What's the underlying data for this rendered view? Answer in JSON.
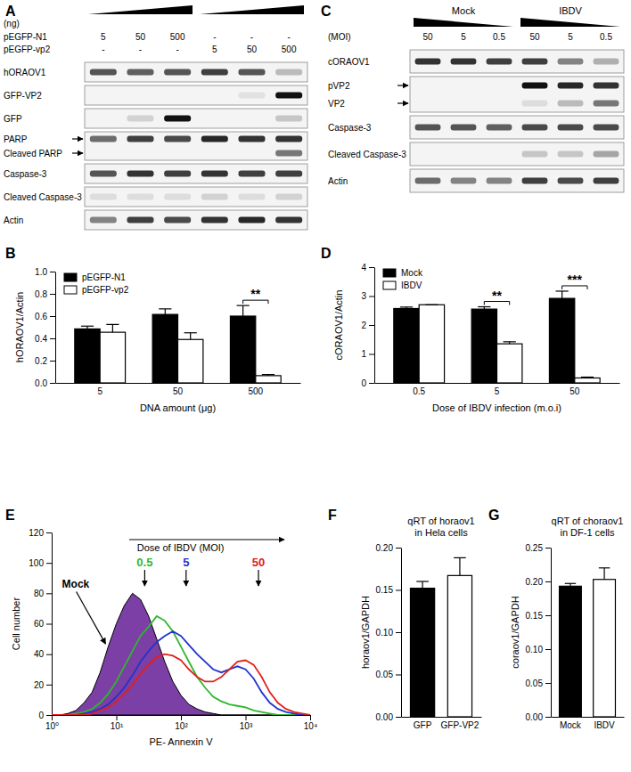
{
  "panel_labels": [
    "A",
    "B",
    "C",
    "D",
    "E",
    "F",
    "G"
  ],
  "blots": [
    {
      "unit_label": "(ng)",
      "lane_headers": [
        {
          "name": "pEGFP-N1",
          "values": [
            "5",
            "50",
            "500",
            "-",
            "-",
            "-"
          ]
        },
        {
          "name": "pEGFP-vp2",
          "values": [
            "-",
            "-",
            "-",
            "5",
            "50",
            "500"
          ]
        }
      ],
      "rows": [
        {
          "label": "hORAOV1",
          "bands": [
            0.7,
            0.65,
            0.7,
            0.8,
            0.7,
            0.25
          ]
        },
        {
          "label": "GFP-VP2",
          "bands": [
            0,
            0,
            0,
            0,
            0.08,
            1
          ]
        },
        {
          "label": "GFP",
          "bands": [
            0,
            0.15,
            1,
            0,
            0,
            0.2
          ]
        },
        {
          "labels": [
            "PARP",
            "Cleaved PARP"
          ],
          "bands": [
            [
              0.6,
              0.8,
              0.75,
              0.9,
              0.85,
              0.85
            ],
            [
              0,
              0,
              0,
              0,
              0,
              0.55
            ]
          ]
        },
        {
          "label": "Caspase-3",
          "bands": [
            0.7,
            0.85,
            0.8,
            0.85,
            0.8,
            0.8
          ]
        },
        {
          "label": "Cleaved Caspase-3",
          "bands": [
            0.1,
            0.1,
            0.1,
            0.15,
            0.1,
            0.15
          ]
        },
        {
          "label": "Actin",
          "bands": [
            0.5,
            0.8,
            0.75,
            0.85,
            0.9,
            0.85
          ]
        }
      ]
    },
    {
      "groups": [
        "Mock",
        "IBDV"
      ],
      "lane_headers": [
        {
          "name": "(MOI)",
          "values": [
            "50",
            "5",
            "0.5",
            "50",
            "5",
            "0.5"
          ]
        }
      ],
      "rows": [
        {
          "label": "cORAOV1",
          "bands": [
            0.85,
            0.85,
            0.8,
            0.8,
            0.5,
            0.3
          ]
        },
        {
          "labels": [
            "pVP2",
            "VP2"
          ],
          "bands": [
            [
              0,
              0,
              0,
              1,
              0.9,
              0.85
            ],
            [
              0,
              0,
              0,
              0.1,
              0.25,
              0.55
            ]
          ]
        },
        {
          "label": "Caspase-3",
          "bands": [
            0.7,
            0.7,
            0.65,
            0.75,
            0.75,
            0.75
          ]
        },
        {
          "label": "Cleaved Caspase-3",
          "bands": [
            0,
            0,
            0,
            0.2,
            0.2,
            0.35
          ]
        },
        {
          "label": "Actin",
          "bands": [
            0.6,
            0.5,
            0.5,
            0.8,
            0.75,
            0.8
          ]
        }
      ]
    }
  ],
  "chart_data": [
    {
      "type": "bar",
      "ylabel": "hORAOV1/Actin",
      "xlabel": "DNA amount (μg)",
      "categories": [
        "5",
        "50",
        "500"
      ],
      "series": [
        {
          "name": "pEGFP-N1",
          "color": "#000000",
          "values": [
            0.485,
            0.615,
            0.6
          ],
          "errors": [
            0.025,
            0.05,
            0.095
          ]
        },
        {
          "name": "pEGFP-vp2",
          "color": "#ffffff",
          "values": [
            0.455,
            0.39,
            0.065
          ],
          "errors": [
            0.07,
            0.06,
            0.01
          ]
        }
      ],
      "ylim": [
        0,
        1
      ],
      "yticks": [
        {
          "value": 0,
          "label": "0.0"
        },
        0.2,
        0.4,
        0.6,
        0.8,
        {
          "value": 1,
          "label": "1.0"
        }
      ],
      "legend": "top-left",
      "annotations": [
        {
          "text": "**",
          "category": "500"
        }
      ]
    },
    {
      "type": "bar",
      "ylabel": "cORAOV1/Actin",
      "xlabel": "Dose of IBDV infection (m.o.i)",
      "categories": [
        "0.5",
        "5",
        "50"
      ],
      "series": [
        {
          "name": "Mock",
          "color": "#000000",
          "values": [
            2.57,
            2.55,
            2.92
          ],
          "errors": [
            0.05,
            0.08,
            0.25
          ]
        },
        {
          "name": "IBDV",
          "color": "#ffffff",
          "values": [
            2.7,
            1.35,
            0.17
          ],
          "errors": [
            0,
            0.07,
            0.03
          ]
        }
      ],
      "ylim": [
        0,
        4
      ],
      "yticks": [
        0,
        1,
        2,
        3,
        4
      ],
      "legend": "top-left",
      "annotations": [
        {
          "text": "**",
          "category": "5"
        },
        {
          "text": "***",
          "category": "50"
        }
      ]
    },
    {
      "type": "line",
      "log": "x",
      "xlabel": "PE- Annexin V",
      "ylabel": "Cell number",
      "x": [
        1,
        1.33,
        1.78,
        2.37,
        3.16,
        4.22,
        5.62,
        7.5,
        10,
        13.3,
        17.8,
        23.7,
        31.6,
        42.2,
        56.2,
        75,
        100,
        133,
        178,
        237,
        316,
        422,
        562,
        750,
        1000,
        1334,
        1778,
        2371,
        3162,
        4217,
        5623,
        7499,
        10000
      ],
      "xlim": [
        1,
        10000
      ],
      "xticks": [
        {
          "value": 1,
          "label": "10⁰"
        },
        {
          "value": 10,
          "label": "10¹"
        },
        {
          "value": 100,
          "label": "10²"
        },
        {
          "value": 1000,
          "label": "10³"
        },
        {
          "value": 10000,
          "label": "10⁴"
        }
      ],
      "ylim": [
        0,
        120
      ],
      "yticks": [
        0,
        20,
        40,
        60,
        80,
        100,
        120
      ],
      "series": [
        {
          "name": "Mock",
          "type": "area",
          "color": "#7b3fa6",
          "values": [
            0,
            0,
            1,
            3,
            8,
            15,
            28,
            45,
            60,
            72,
            80,
            76,
            65,
            50,
            35,
            22,
            13,
            7,
            4,
            2,
            1,
            0,
            0,
            0,
            0,
            0,
            0,
            0,
            0,
            0,
            0,
            0,
            0
          ]
        },
        {
          "name": "0.5",
          "type": "line",
          "color": "#2db82d",
          "values": [
            0,
            0,
            0,
            1,
            2,
            4,
            8,
            14,
            22,
            32,
            42,
            52,
            58,
            65,
            62,
            55,
            45,
            35,
            25,
            18,
            12,
            9,
            7,
            6,
            5,
            3,
            2,
            1,
            0,
            0,
            0,
            0,
            0
          ]
        },
        {
          "name": "5",
          "type": "line",
          "color": "#2233cc",
          "values": [
            0,
            0,
            0,
            0,
            1,
            2,
            4,
            7,
            12,
            18,
            26,
            35,
            42,
            48,
            52,
            55,
            52,
            46,
            40,
            35,
            30,
            28,
            30,
            32,
            30,
            24,
            15,
            8,
            4,
            2,
            1,
            0,
            0
          ]
        },
        {
          "name": "50",
          "type": "line",
          "color": "#e0201b",
          "values": [
            0,
            0,
            0,
            0,
            0,
            1,
            3,
            5,
            9,
            14,
            20,
            27,
            33,
            38,
            40,
            39,
            36,
            30,
            25,
            22,
            22,
            25,
            30,
            35,
            36,
            33,
            25,
            15,
            8,
            4,
            2,
            1,
            0
          ]
        }
      ],
      "annotations": [
        {
          "text": "Dose of IBDV (MOI)"
        }
      ]
    },
    {
      "type": "bar",
      "title": [
        "qRT of horaov1",
        "in Hela cells"
      ],
      "ylabel": "horaov1/GAPDH",
      "categories": [
        "GFP",
        "GFP-VP2"
      ],
      "values": [
        0.152,
        0.167
      ],
      "errors": [
        0.008,
        0.021
      ],
      "colors": [
        "#000000",
        "#ffffff"
      ],
      "ylim": [
        0,
        0.2
      ],
      "yticks": [
        {
          "value": 0,
          "label": "0.00"
        },
        0.05,
        {
          "value": 0.1,
          "label": "0.10"
        },
        0.15,
        {
          "value": 0.2,
          "label": "0.20"
        }
      ]
    },
    {
      "type": "bar",
      "title": [
        "qRT of choraov1",
        "in DF-1 cells"
      ],
      "ylabel": "coraov1/GAPDH",
      "categories": [
        "Mock",
        "IBDV"
      ],
      "values": [
        0.193,
        0.203
      ],
      "errors": [
        0.004,
        0.017
      ],
      "colors": [
        "#000000",
        "#ffffff"
      ],
      "ylim": [
        0,
        0.25
      ],
      "yticks": [
        {
          "value": 0,
          "label": "0.00"
        },
        0.05,
        {
          "value": 0.1,
          "label": "0.10"
        },
        0.15,
        {
          "value": 0.2,
          "label": "0.20"
        },
        0.25
      ]
    }
  ]
}
